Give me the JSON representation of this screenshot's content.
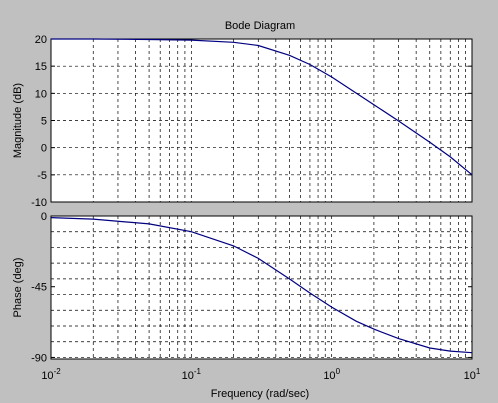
{
  "window": {
    "background_color": "#c0c0c0"
  },
  "chart_data": {
    "type": "line",
    "title": "Bode Diagram",
    "xlabel": "Frequency  (rad/sec)",
    "x_scale": "log",
    "xlim": [
      0.01,
      10
    ],
    "x_ticks": [
      {
        "value": 0.01,
        "base": "10",
        "exp": "-2"
      },
      {
        "value": 0.1,
        "base": "10",
        "exp": "-1"
      },
      {
        "value": 1,
        "base": "10",
        "exp": "0"
      },
      {
        "value": 10,
        "base": "10",
        "exp": "1"
      }
    ],
    "grid": true,
    "line_color": "#000080",
    "panels": [
      {
        "name": "magnitude",
        "ylabel": "Magnitude (dB)",
        "ylim": [
          -10,
          20
        ],
        "y_ticks": [
          {
            "value": 20,
            "label": "20"
          },
          {
            "value": 15,
            "label": "15"
          },
          {
            "value": 10,
            "label": "10"
          },
          {
            "value": 5,
            "label": "5"
          },
          {
            "value": 0,
            "label": "0"
          },
          {
            "value": -5,
            "label": "-5"
          },
          {
            "value": -10,
            "label": "-10"
          }
        ],
        "y_grid": [
          15,
          10,
          5,
          0,
          -5
        ],
        "series": [
          {
            "x": [
              0.01,
              0.02,
              0.05,
              0.1,
              0.2,
              0.3,
              0.5,
              0.7,
              1,
              1.5,
              2,
              3,
              5,
              7,
              10
            ],
            "y": [
              20,
              20,
              19.9,
              19.8,
              19.4,
              18.8,
              17.0,
              15.3,
              13.0,
              10.0,
              7.9,
              4.9,
              1.0,
              -1.7,
              -5.0
            ]
          }
        ]
      },
      {
        "name": "phase",
        "ylabel": "Phase (deg)",
        "ylim": [
          -91,
          0
        ],
        "y_ticks": [
          {
            "value": 0,
            "label": "0"
          },
          {
            "value": -45,
            "label": "-45"
          },
          {
            "value": -90,
            "label": "-90"
          }
        ],
        "y_grid": [
          -10,
          -20,
          -30,
          -40,
          -50,
          -60,
          -70,
          -80,
          -90
        ],
        "series": [
          {
            "x": [
              0.01,
              0.02,
              0.05,
              0.1,
              0.2,
              0.3,
              0.5,
              0.7,
              1,
              1.5,
              2,
              3,
              5,
              7,
              10
            ],
            "y": [
              -1,
              -2,
              -5,
              -10,
              -19,
              -27,
              -40,
              -49,
              -58,
              -67,
              -72,
              -78,
              -84,
              -86,
              -87
            ]
          }
        ]
      }
    ]
  }
}
